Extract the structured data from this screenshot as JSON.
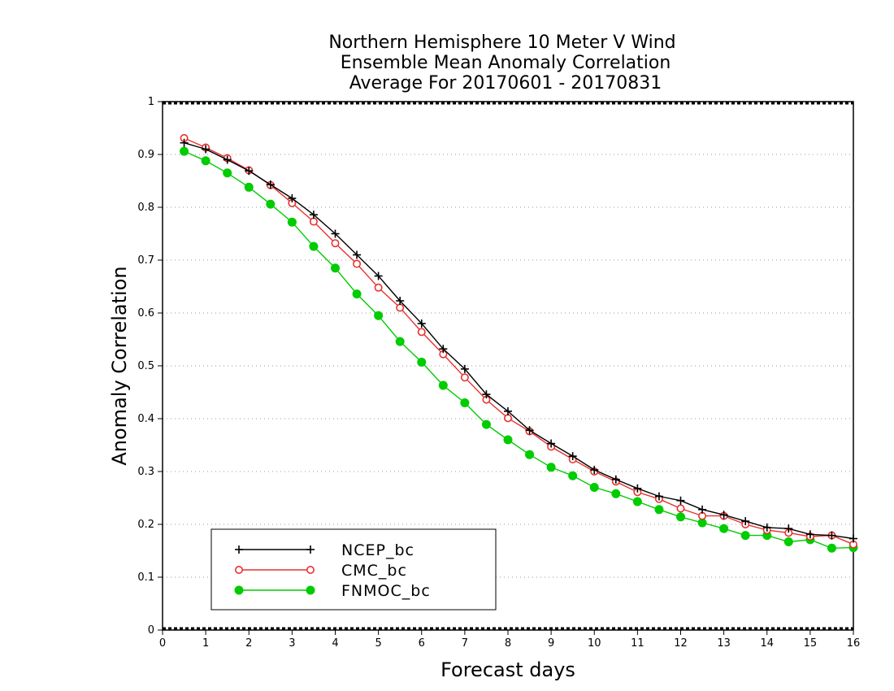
{
  "chart_data": {
    "type": "line",
    "title": [
      "Northern Hemisphere 10 Meter V Wind",
      "Ensemble Mean Anomaly Correlation",
      "Average For 20170601 - 20170831"
    ],
    "xlabel": "Forecast days",
    "ylabel": "Anomaly Correlation",
    "xlim": [
      0,
      16
    ],
    "ylim": [
      0,
      1
    ],
    "xticks": [
      "0",
      "1",
      "2",
      "3",
      "4",
      "5",
      "6",
      "7",
      "8",
      "9",
      "10",
      "11",
      "12",
      "13",
      "14",
      "15",
      "16"
    ],
    "yticks": [
      "0",
      "0.1",
      "0.2",
      "0.3",
      "0.4",
      "0.5",
      "0.6",
      "0.7",
      "0.8",
      "0.9",
      "1"
    ],
    "grid": "horizontal dotted",
    "legend_position": "bottom-left",
    "x": [
      0.5,
      1,
      1.5,
      2,
      2.5,
      3,
      3.5,
      4,
      4.5,
      5,
      5.5,
      6,
      6.5,
      7,
      7.5,
      8,
      8.5,
      9,
      9.5,
      10,
      10.5,
      11,
      11.5,
      12,
      12.5,
      13,
      13.5,
      14,
      14.5,
      15,
      15.5,
      16
    ],
    "series": [
      {
        "name": "NCEP_bc",
        "color": "#000000",
        "marker": "plus",
        "values": [
          0.922,
          0.91,
          0.89,
          0.869,
          0.843,
          0.817,
          0.786,
          0.75,
          0.71,
          0.67,
          0.623,
          0.58,
          0.532,
          0.494,
          0.446,
          0.414,
          0.378,
          0.353,
          0.329,
          0.303,
          0.285,
          0.268,
          0.253,
          0.245,
          0.228,
          0.218,
          0.206,
          0.194,
          0.192,
          0.181,
          0.179,
          0.173
        ]
      },
      {
        "name": "CMC_bc",
        "color": "#e8312f",
        "marker": "open-circle",
        "values": [
          0.931,
          0.913,
          0.893,
          0.87,
          0.842,
          0.808,
          0.773,
          0.732,
          0.693,
          0.648,
          0.61,
          0.564,
          0.522,
          0.478,
          0.436,
          0.401,
          0.376,
          0.347,
          0.323,
          0.3,
          0.281,
          0.261,
          0.248,
          0.23,
          0.216,
          0.216,
          0.2,
          0.189,
          0.184,
          0.177,
          0.179,
          0.162
        ]
      },
      {
        "name": "FNMOC_bc",
        "color": "#00cc00",
        "marker": "filled-circle",
        "values": [
          0.906,
          0.888,
          0.865,
          0.838,
          0.806,
          0.772,
          0.726,
          0.685,
          0.636,
          0.595,
          0.546,
          0.507,
          0.463,
          0.43,
          0.389,
          0.36,
          0.332,
          0.308,
          0.292,
          0.27,
          0.258,
          0.243,
          0.228,
          0.214,
          0.203,
          0.192,
          0.179,
          0.179,
          0.167,
          0.171,
          0.155,
          0.156
        ]
      }
    ]
  }
}
